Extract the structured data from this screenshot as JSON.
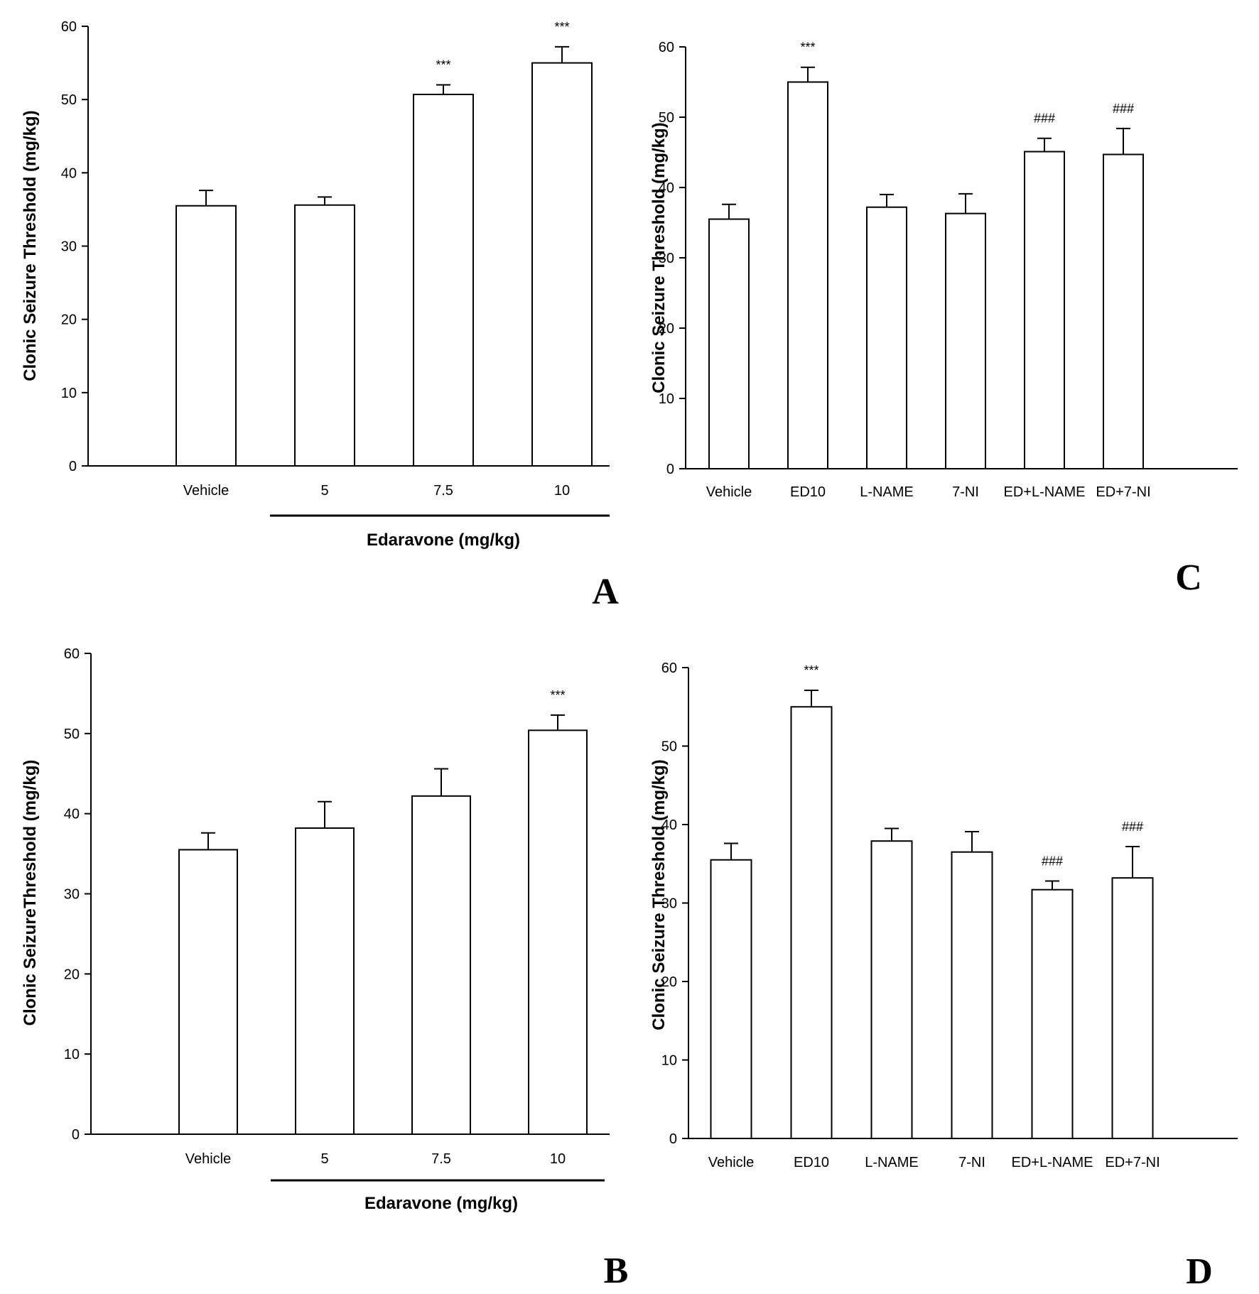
{
  "chart_data": [
    {
      "panel": "A",
      "type": "bar",
      "ylabel": "Clonic Seizure Threshold (mg/kg)",
      "xlabel": "Edaravone (mg/kg)",
      "categories": [
        "Vehicle",
        "5",
        "7.5",
        "10"
      ],
      "values": [
        35.5,
        35.6,
        50.7,
        55.0
      ],
      "errors": [
        2.1,
        1.1,
        1.3,
        2.2
      ],
      "annotations": [
        "",
        "",
        "***",
        "***"
      ],
      "ylim": [
        0,
        60
      ],
      "yticks": [
        0,
        10,
        20,
        30,
        40,
        50,
        60
      ],
      "group_bracket": {
        "label": "Edaravone (mg/kg)",
        "from_category": 1,
        "to_category": 3
      }
    },
    {
      "panel": "C",
      "type": "bar",
      "ylabel": "Clonic Seizure Threshold (mg/kg)",
      "xlabel": "",
      "categories": [
        "Vehicle",
        "ED10",
        "L-NAME",
        "7-NI",
        "ED+L-NAME",
        "ED+7-NI"
      ],
      "values": [
        35.5,
        55.0,
        37.2,
        36.3,
        45.1,
        44.7
      ],
      "errors": [
        2.1,
        2.1,
        1.8,
        2.8,
        1.9,
        3.7
      ],
      "annotations": [
        "",
        "***",
        "",
        "",
        "###",
        "###"
      ],
      "ylim": [
        0,
        60
      ],
      "yticks": [
        0,
        10,
        20,
        30,
        40,
        50,
        60
      ]
    },
    {
      "panel": "B",
      "type": "bar",
      "ylabel": "Clonic SeizureThreshold (mg/kg)",
      "xlabel": "Edaravone (mg/kg)",
      "categories": [
        "Vehicle",
        "5",
        "7.5",
        "10"
      ],
      "values": [
        35.5,
        38.2,
        42.2,
        50.4
      ],
      "errors": [
        2.1,
        3.3,
        3.4,
        1.9
      ],
      "annotations": [
        "",
        "",
        "",
        "***"
      ],
      "ylim": [
        0,
        60
      ],
      "yticks": [
        0,
        10,
        20,
        30,
        40,
        50,
        60
      ],
      "group_bracket": {
        "label": "Edaravone (mg/kg)",
        "from_category": 1,
        "to_category": 3
      }
    },
    {
      "panel": "D",
      "type": "bar",
      "ylabel": "Clonic Seizure Threshold (mg/kg)",
      "xlabel": "",
      "categories": [
        "Vehicle",
        "ED10",
        "L-NAME",
        "7-NI",
        "ED+L-NAME",
        "ED+7-NI"
      ],
      "values": [
        35.5,
        55.0,
        37.9,
        36.5,
        31.7,
        33.2
      ],
      "errors": [
        2.1,
        2.1,
        1.6,
        2.6,
        1.1,
        4.0
      ],
      "annotations": [
        "",
        "***",
        "",
        "",
        "###",
        "###"
      ],
      "ylim": [
        0,
        60
      ],
      "yticks": [
        0,
        10,
        20,
        30,
        40,
        50,
        60
      ]
    }
  ]
}
